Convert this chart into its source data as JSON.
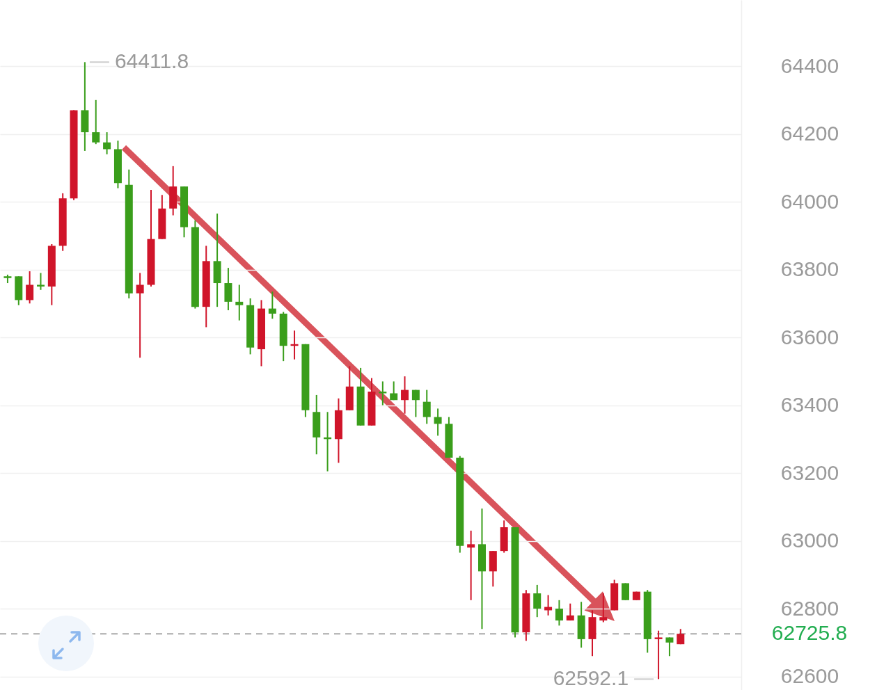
{
  "chart_data": {
    "type": "candlestick",
    "categories": [
      null,
      null,
      null,
      null,
      null,
      null,
      null,
      null,
      null,
      null,
      null,
      null,
      null,
      null,
      null,
      null,
      null,
      null,
      null,
      null,
      null,
      null,
      null,
      null,
      null,
      null,
      null,
      null,
      null,
      null,
      null,
      null,
      null,
      null,
      null,
      null,
      null,
      null,
      null,
      null,
      null,
      null,
      null,
      null,
      null,
      null,
      null,
      null,
      null,
      null,
      null,
      null,
      null,
      null,
      null,
      null,
      null,
      null,
      null,
      null,
      null,
      null
    ],
    "ohlc": [
      [
        63780,
        63785,
        63760,
        63775
      ],
      [
        63780,
        63780,
        63695,
        63710
      ],
      [
        63710,
        63795,
        63700,
        63755
      ],
      [
        63755,
        63790,
        63740,
        63750
      ],
      [
        63750,
        63875,
        63695,
        63870
      ],
      [
        63870,
        64025,
        63855,
        64010
      ],
      [
        64010,
        64270,
        64005,
        64270
      ],
      [
        64270,
        64411.8,
        64150,
        64205
      ],
      [
        64205,
        64300,
        64170,
        64175
      ],
      [
        64175,
        64205,
        64140,
        64155
      ],
      [
        64155,
        64180,
        64040,
        64055
      ],
      [
        64050,
        64095,
        63715,
        63730
      ],
      [
        63730,
        63790,
        63540,
        63755
      ],
      [
        63755,
        64035,
        63750,
        63890
      ],
      [
        63890,
        64020,
        63890,
        63980
      ],
      [
        63980,
        64105,
        63960,
        64045
      ],
      [
        64045,
        64045,
        63895,
        63925
      ],
      [
        63925,
        63945,
        63685,
        63690
      ],
      [
        63690,
        63870,
        63630,
        63825
      ],
      [
        63825,
        63965,
        63690,
        63760
      ],
      [
        63760,
        63805,
        63680,
        63705
      ],
      [
        63705,
        63755,
        63650,
        63695
      ],
      [
        63695,
        63715,
        63550,
        63570
      ],
      [
        63565,
        63710,
        63515,
        63685
      ],
      [
        63685,
        63735,
        63655,
        63670
      ],
      [
        63670,
        63675,
        63530,
        63575
      ],
      [
        63575,
        63620,
        63535,
        63580
      ],
      [
        63580,
        63580,
        63365,
        63385
      ],
      [
        63380,
        63430,
        63255,
        63305
      ],
      [
        63305,
        63380,
        63205,
        63300
      ],
      [
        63300,
        63420,
        63230,
        63385
      ],
      [
        63385,
        63515,
        63385,
        63455
      ],
      [
        63455,
        63510,
        63340,
        63340
      ],
      [
        63340,
        63480,
        63340,
        63440
      ],
      [
        63440,
        63470,
        63400,
        63435
      ],
      [
        63435,
        63470,
        63415,
        63415
      ],
      [
        63415,
        63485,
        63375,
        63445
      ],
      [
        63445,
        63445,
        63365,
        63415
      ],
      [
        63410,
        63445,
        63345,
        63365
      ],
      [
        63365,
        63390,
        63310,
        63345
      ],
      [
        63345,
        63365,
        63245,
        63245
      ],
      [
        63245,
        63250,
        62965,
        62985
      ],
      [
        62980,
        63030,
        62825,
        62990
      ],
      [
        62990,
        63095,
        62740,
        62910
      ],
      [
        62910,
        62970,
        62865,
        62970
      ],
      [
        62970,
        63060,
        62965,
        63040
      ],
      [
        63040,
        63040,
        62715,
        62730
      ],
      [
        62730,
        62855,
        62705,
        62845
      ],
      [
        62845,
        62870,
        62775,
        62800
      ],
      [
        62795,
        62840,
        62780,
        62805
      ],
      [
        62800,
        62825,
        62750,
        62765
      ],
      [
        62765,
        62815,
        62765,
        62780
      ],
      [
        62780,
        62820,
        62685,
        62710
      ],
      [
        62710,
        62795,
        62660,
        62775
      ],
      [
        62765,
        62845,
        62760,
        62775
      ],
      [
        62795,
        62885,
        62795,
        62875
      ],
      [
        62875,
        62875,
        62825,
        62825
      ],
      [
        62825,
        62850,
        62825,
        62850
      ],
      [
        62850,
        62855,
        62670,
        62710
      ],
      [
        62710,
        62735,
        62592.1,
        62715
      ],
      [
        62715,
        62715,
        62660,
        62700
      ],
      [
        62695,
        62740,
        62695,
        62725.8
      ]
    ],
    "colors": [
      "#3a9e1b",
      "#3a9e1b",
      "#d0152a",
      "#3a9e1b",
      "#d0152a",
      "#d0152a",
      "#d0152a",
      "#3a9e1b",
      "#3a9e1b",
      "#3a9e1b",
      "#3a9e1b",
      "#3a9e1b",
      "#d0152a",
      "#d0152a",
      "#d0152a",
      "#d0152a",
      "#3a9e1b",
      "#3a9e1b",
      "#d0152a",
      "#3a9e1b",
      "#3a9e1b",
      "#3a9e1b",
      "#3a9e1b",
      "#d0152a",
      "#3a9e1b",
      "#3a9e1b",
      "#d0152a",
      "#3a9e1b",
      "#3a9e1b",
      "#3a9e1b",
      "#d0152a",
      "#d0152a",
      "#3a9e1b",
      "#d0152a",
      "#3a9e1b",
      "#3a9e1b",
      "#d0152a",
      "#3a9e1b",
      "#3a9e1b",
      "#3a9e1b",
      "#3a9e1b",
      "#3a9e1b",
      "#d0152a",
      "#3a9e1b",
      "#d0152a",
      "#d0152a",
      "#3a9e1b",
      "#d0152a",
      "#3a9e1b",
      "#d0152a",
      "#3a9e1b",
      "#d0152a",
      "#3a9e1b",
      "#d0152a",
      "#d0152a",
      "#d0152a",
      "#3a9e1b",
      "#d0152a",
      "#3a9e1b",
      "#d0152a",
      "#3a9e1b",
      "#d0152a"
    ],
    "ylim": [
      62560,
      64595
    ],
    "yticks": [
      62600,
      62800,
      63000,
      63200,
      63400,
      63600,
      63800,
      64000,
      64200,
      64400
    ],
    "grid": "y",
    "tick_labels": "y",
    "ref_lines": [
      {
        "axis": "y",
        "value": 62725.8,
        "label": "62725.8",
        "color": "#aaaaaa",
        "line_style": "dashed"
      }
    ],
    "annotations": [
      "64411.8",
      "62592.1"
    ]
  }
}
